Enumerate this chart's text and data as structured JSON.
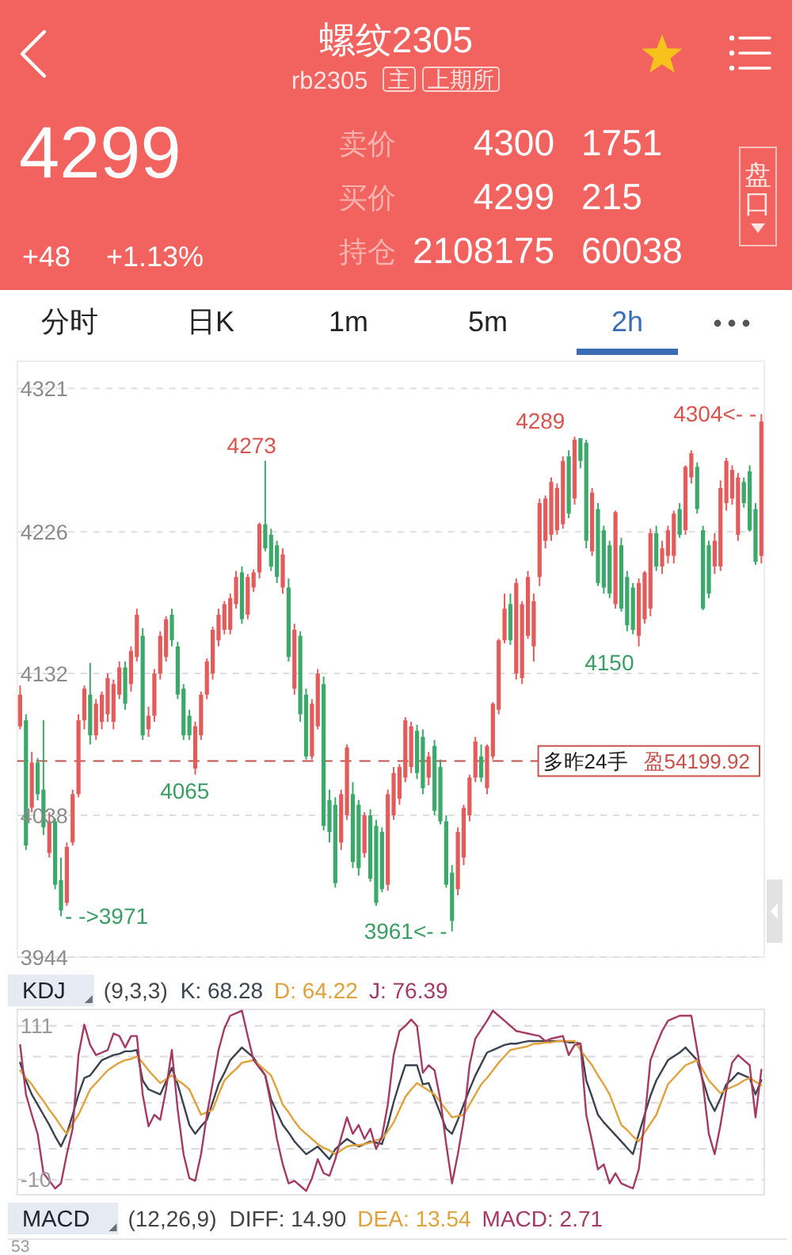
{
  "chart_data": [
    {
      "type": "other",
      "title": "螺纹2305",
      "subtitle": "rb2305",
      "annotations": [
        "主",
        "上期所",
        "4299",
        "+48",
        "+1.13%",
        "卖价",
        "4300",
        "1751",
        "买价",
        "4299",
        "215",
        "持仓",
        "2108175",
        "60038",
        "盘口",
        "分时",
        "日K",
        "1m",
        "5m",
        "2h"
      ]
    },
    {
      "type": "candlestick",
      "categories": [
        null,
        null,
        null,
        null,
        null,
        null,
        null,
        null,
        null,
        null,
        null,
        null,
        null,
        null,
        null,
        null,
        null,
        null,
        null,
        null,
        null,
        null,
        null,
        null,
        null,
        null,
        null,
        null,
        null,
        null,
        null,
        null,
        null,
        null,
        null,
        null,
        null,
        null,
        null,
        null,
        null,
        null,
        null,
        null,
        null,
        null,
        null,
        null,
        null,
        null,
        null,
        null,
        null,
        null,
        null,
        null,
        null,
        null,
        null,
        null,
        null,
        null,
        null,
        null,
        null,
        null,
        null,
        null,
        null,
        null,
        null,
        null,
        null,
        null,
        null,
        null,
        null,
        null,
        null,
        null,
        null,
        null,
        null,
        null,
        null,
        null,
        null,
        null,
        null,
        null,
        null,
        null,
        null,
        null,
        null,
        null,
        null,
        null,
        null,
        null,
        null,
        null,
        null,
        null,
        null,
        null,
        null,
        null,
        null,
        null,
        null,
        null,
        null,
        null,
        null,
        null,
        null,
        null,
        null,
        null,
        null,
        null,
        null,
        null,
        null,
        null,
        null,
        null
      ],
      "ohlc": [
        [
          4097,
          4124,
          4095,
          4118
        ],
        [
          4101,
          4105,
          4015,
          4018
        ],
        [
          4043,
          4080,
          4040,
          4073
        ],
        [
          4073,
          4076,
          4048,
          4052
        ],
        [
          4055,
          4101,
          4025,
          4030
        ],
        [
          4013,
          4040,
          4010,
          4034
        ],
        [
          4034,
          4036,
          3989,
          3992
        ],
        [
          3995,
          4010,
          3971,
          3975
        ],
        [
          3980,
          4020,
          3978,
          4017
        ],
        [
          4020,
          4055,
          4018,
          4052
        ],
        [
          4052,
          4105,
          4050,
          4101
        ],
        [
          4101,
          4124,
          4095,
          4122
        ],
        [
          4118,
          4139,
          4085,
          4091
        ],
        [
          4091,
          4115,
          4088,
          4112
        ],
        [
          4100,
          4120,
          4095,
          4118
        ],
        [
          4105,
          4132,
          4100,
          4129
        ],
        [
          4100,
          4128,
          4095,
          4125
        ],
        [
          4118,
          4140,
          4115,
          4136
        ],
        [
          4136,
          4140,
          4108,
          4112
        ],
        [
          4125,
          4150,
          4120,
          4147
        ],
        [
          4143,
          4175,
          4140,
          4171
        ],
        [
          4157,
          4162,
          4088,
          4091
        ],
        [
          4095,
          4110,
          4090,
          4104
        ],
        [
          4104,
          4135,
          4100,
          4132
        ],
        [
          4132,
          4160,
          4128,
          4157
        ],
        [
          4143,
          4170,
          4140,
          4168
        ],
        [
          4171,
          4175,
          4150,
          4154
        ],
        [
          4150,
          4153,
          4115,
          4118
        ],
        [
          4122,
          4125,
          4088,
          4091
        ],
        [
          4104,
          4108,
          4088,
          4091
        ],
        [
          4069,
          4100,
          4065,
          4097
        ],
        [
          4091,
          4120,
          4088,
          4118
        ],
        [
          4118,
          4142,
          4115,
          4140
        ],
        [
          4132,
          4163,
          4128,
          4161
        ],
        [
          4154,
          4175,
          4150,
          4171
        ],
        [
          4161,
          4180,
          4158,
          4178
        ],
        [
          4161,
          4185,
          4158,
          4182
        ],
        [
          4178,
          4200,
          4175,
          4196
        ],
        [
          4199,
          4203,
          4165,
          4168
        ],
        [
          4171,
          4198,
          4168,
          4196
        ],
        [
          4189,
          4201,
          4186,
          4199
        ],
        [
          4199,
          4232,
          4195,
          4231
        ],
        [
          4231,
          4273,
          4213,
          4215
        ],
        [
          4224,
          4228,
          4200,
          4203
        ],
        [
          4217,
          4220,
          4192,
          4196
        ],
        [
          4189,
          4215,
          4185,
          4211
        ],
        [
          4189,
          4195,
          4140,
          4143
        ],
        [
          4122,
          4165,
          4118,
          4161
        ],
        [
          4157,
          4160,
          4100,
          4105
        ],
        [
          4118,
          4122,
          4075,
          4077
        ],
        [
          4077,
          4115,
          4075,
          4112
        ],
        [
          4097,
          4135,
          4095,
          4132
        ],
        [
          4125,
          4130,
          4028,
          4031
        ],
        [
          4048,
          4055,
          4020,
          4027
        ],
        [
          4045,
          4050,
          3990,
          3993
        ],
        [
          4020,
          4055,
          4015,
          4052
        ],
        [
          4038,
          4085,
          4035,
          4083
        ],
        [
          4052,
          4060,
          4003,
          4007
        ],
        [
          4045,
          4048,
          3998,
          4003
        ],
        [
          4013,
          4040,
          4010,
          4038
        ],
        [
          4038,
          4042,
          3994,
          3996
        ],
        [
          4031,
          4035,
          3978,
          3980
        ],
        [
          4027,
          4030,
          3987,
          3989
        ],
        [
          3992,
          4055,
          3988,
          4052
        ],
        [
          4038,
          4070,
          4035,
          4066
        ],
        [
          4049,
          4072,
          4045,
          4070
        ],
        [
          4063,
          4103,
          4060,
          4101
        ],
        [
          4070,
          4100,
          4066,
          4097
        ],
        [
          4094,
          4098,
          4062,
          4066
        ],
        [
          4090,
          4095,
          4052,
          4056
        ],
        [
          4063,
          4080,
          4058,
          4077
        ],
        [
          4084,
          4088,
          4038,
          4041
        ],
        [
          4070,
          4075,
          4032,
          4034
        ],
        [
          4034,
          4038,
          3990,
          3992
        ],
        [
          4000,
          4005,
          3961,
          3968
        ],
        [
          3989,
          4030,
          3985,
          4027
        ],
        [
          4010,
          4045,
          4005,
          4043
        ],
        [
          4038,
          4065,
          4034,
          4063
        ],
        [
          4063,
          4090,
          4060,
          4087
        ],
        [
          4077,
          4085,
          4060,
          4063
        ],
        [
          4056,
          4085,
          4052,
          4084
        ],
        [
          4077,
          4113,
          4075,
          4112
        ],
        [
          4108,
          4155,
          4105,
          4154
        ],
        [
          4154,
          4185,
          4152,
          4175
        ],
        [
          4178,
          4185,
          4151,
          4154
        ],
        [
          4132,
          4195,
          4128,
          4192
        ],
        [
          4129,
          4180,
          4125,
          4178
        ],
        [
          4157,
          4200,
          4155,
          4196
        ],
        [
          4150,
          4185,
          4140,
          4180
        ],
        [
          4196,
          4248,
          4190,
          4245
        ],
        [
          4220,
          4250,
          4215,
          4248
        ],
        [
          4224,
          4262,
          4220,
          4259
        ],
        [
          4227,
          4258,
          4224,
          4255
        ],
        [
          4231,
          4276,
          4228,
          4273
        ],
        [
          4276,
          4280,
          4235,
          4238
        ],
        [
          4248,
          4289,
          4244,
          4287
        ],
        [
          4288,
          4288,
          4268,
          4273
        ],
        [
          4285,
          4287,
          4215,
          4220
        ],
        [
          4213,
          4255,
          4210,
          4252
        ],
        [
          4241,
          4245,
          4190,
          4192
        ],
        [
          4227,
          4230,
          4185,
          4189
        ],
        [
          4217,
          4220,
          4182,
          4185
        ],
        [
          4178,
          4240,
          4175,
          4239
        ],
        [
          4217,
          4222,
          4173,
          4175
        ],
        [
          4196,
          4200,
          4160,
          4164
        ],
        [
          4189,
          4192,
          4158,
          4161
        ],
        [
          4157,
          4195,
          4150,
          4192
        ],
        [
          4168,
          4200,
          4165,
          4199
        ],
        [
          4175,
          4228,
          4170,
          4225
        ],
        [
          4225,
          4230,
          4200,
          4203
        ],
        [
          4203,
          4220,
          4198,
          4215
        ],
        [
          4210,
          4230,
          4205,
          4227
        ],
        [
          4210,
          4240,
          4205,
          4238
        ],
        [
          4241,
          4245,
          4222,
          4224
        ],
        [
          4227,
          4270,
          4224,
          4269
        ],
        [
          4262,
          4280,
          4258,
          4278
        ],
        [
          4269,
          4272,
          4238,
          4241
        ],
        [
          4227,
          4230,
          4174,
          4175
        ],
        [
          4217,
          4220,
          4182,
          4185
        ],
        [
          4203,
          4225,
          4198,
          4220
        ],
        [
          4203,
          4260,
          4200,
          4255
        ],
        [
          4245,
          4275,
          4240,
          4273
        ],
        [
          4248,
          4270,
          4244,
          4267
        ],
        [
          4224,
          4265,
          4220,
          4262
        ],
        [
          4259,
          4262,
          4242,
          4245
        ],
        [
          4266,
          4270,
          4226,
          4227
        ],
        [
          4241,
          4245,
          4204,
          4206
        ],
        [
          4210,
          4304,
          4205,
          4299
        ]
      ],
      "colors": [
        "#e25c5c",
        "#3ca86a",
        "#e25c5c",
        "#3ca86a",
        "#3ca86a",
        "#e25c5c",
        "#3ca86a",
        "#3ca86a",
        "#e25c5c",
        "#e25c5c",
        "#e25c5c",
        "#e25c5c",
        "#3ca86a",
        "#e25c5c",
        "#e25c5c",
        "#e25c5c",
        "#e25c5c",
        "#e25c5c",
        "#3ca86a",
        "#e25c5c",
        "#e25c5c",
        "#3ca86a",
        "#e25c5c",
        "#e25c5c",
        "#e25c5c",
        "#e25c5c",
        "#3ca86a",
        "#3ca86a",
        "#3ca86a",
        "#3ca86a",
        "#e25c5c",
        "#e25c5c",
        "#e25c5c",
        "#e25c5c",
        "#e25c5c",
        "#e25c5c",
        "#e25c5c",
        "#e25c5c",
        "#3ca86a",
        "#e25c5c",
        "#e25c5c",
        "#e25c5c",
        "#3ca86a",
        "#3ca86a",
        "#3ca86a",
        "#e25c5c",
        "#3ca86a",
        "#e25c5c",
        "#3ca86a",
        "#3ca86a",
        "#e25c5c",
        "#e25c5c",
        "#3ca86a",
        "#3ca86a",
        "#3ca86a",
        "#e25c5c",
        "#e25c5c",
        "#3ca86a",
        "#3ca86a",
        "#e25c5c",
        "#3ca86a",
        "#3ca86a",
        "#3ca86a",
        "#e25c5c",
        "#e25c5c",
        "#e25c5c",
        "#e25c5c",
        "#e25c5c",
        "#3ca86a",
        "#3ca86a",
        "#e25c5c",
        "#3ca86a",
        "#3ca86a",
        "#3ca86a",
        "#3ca86a",
        "#e25c5c",
        "#e25c5c",
        "#e25c5c",
        "#e25c5c",
        "#3ca86a",
        "#e25c5c",
        "#e25c5c",
        "#e25c5c",
        "#e25c5c",
        "#3ca86a",
        "#e25c5c",
        "#e25c5c",
        "#e25c5c",
        "#e25c5c",
        "#e25c5c",
        "#e25c5c",
        "#e25c5c",
        "#e25c5c",
        "#e25c5c",
        "#3ca86a",
        "#e25c5c",
        "#3ca86a",
        "#3ca86a",
        "#e25c5c",
        "#3ca86a",
        "#3ca86a",
        "#3ca86a",
        "#e25c5c",
        "#3ca86a",
        "#3ca86a",
        "#3ca86a",
        "#e25c5c",
        "#e25c5c",
        "#e25c5c",
        "#3ca86a",
        "#e25c5c",
        "#e25c5c",
        "#e25c5c",
        "#3ca86a",
        "#e25c5c",
        "#e25c5c",
        "#3ca86a",
        "#3ca86a",
        "#3ca86a",
        "#e25c5c",
        "#e25c5c",
        "#e25c5c",
        "#e25c5c",
        "#e25c5c",
        "#3ca86a",
        "#3ca86a",
        "#3ca86a",
        "#e25c5c"
      ],
      "ylim": [
        3944,
        4339
      ],
      "yticks": [
        4321,
        4226,
        4132,
        4038,
        3944
      ],
      "grid": "y",
      "tick_labels": "y",
      "ref_lines": [
        {
          "axis": "y",
          "value": 4074,
          "label": "多昨24手",
          "color": "#c9504c",
          "line_style": "dashed"
        }
      ],
      "annotations": [
        "盈54199.92",
        "4273",
        "4289",
        "4304<- -",
        "- ->3971",
        "4065",
        "3961<- -",
        "4150"
      ]
    },
    {
      "type": "line",
      "title": "KDJ",
      "subtitle": "(9,3,3)",
      "categories": [
        null,
        null,
        null,
        null,
        null,
        null,
        null,
        null,
        null,
        null,
        null,
        null,
        null,
        null,
        null,
        null,
        null,
        null,
        null,
        null,
        null,
        null,
        null,
        null,
        null,
        null,
        null,
        null,
        null,
        null,
        null,
        null,
        null,
        null,
        null,
        null,
        null,
        null,
        null,
        null,
        null,
        null,
        null,
        null,
        null,
        null,
        null,
        null,
        null,
        null,
        null,
        null,
        null,
        null,
        null,
        null,
        null,
        null,
        null,
        null,
        null,
        null,
        null,
        null,
        null,
        null,
        null,
        null,
        null,
        null,
        null,
        null,
        null,
        null,
        null,
        null,
        null,
        null,
        null,
        null,
        null,
        null,
        null,
        null,
        null,
        null,
        null,
        null,
        null,
        null,
        null,
        null,
        null,
        null,
        null,
        null,
        null,
        null,
        null,
        null,
        null,
        null,
        null,
        null,
        null,
        null,
        null,
        null,
        null,
        null,
        null,
        null,
        null,
        null,
        null,
        null,
        null,
        null,
        null,
        null,
        null,
        null,
        null,
        null,
        null,
        null,
        null,
        null
      ],
      "ylim": [
        -22,
        124
      ],
      "yticks": [
        111,
        {
          "value": 86.8,
          "label": null
        },
        {
          "value": 50.5,
          "label": null
        },
        {
          "value": 14.2,
          "label": null
        },
        -10
      ],
      "grid": "y",
      "tick_labels": "y",
      "series": [
        {
          "name": "K: 68.28",
          "color": "#3b4250",
          "values": [
            82,
            68,
            57,
            49,
            41,
            33,
            24,
            16,
            26,
            41,
            57,
            70,
            72,
            78,
            84,
            86,
            88,
            89,
            91,
            91,
            92,
            68,
            61,
            59,
            57,
            67,
            78,
            65,
            49,
            33,
            26,
            32,
            37,
            51,
            65,
            74,
            84,
            89,
            94,
            90,
            86,
            79,
            72,
            53,
            43,
            33,
            27,
            20,
            15,
            10,
            13,
            16,
            11,
            6,
            14,
            18,
            22,
            19,
            16,
            18,
            20,
            19,
            18,
            33,
            51,
            66,
            80,
            80,
            80,
            65,
            66,
            54,
            42,
            30,
            26,
            37,
            49,
            61,
            72,
            81,
            90,
            92,
            94,
            96,
            97,
            97,
            98,
            99,
            99,
            99,
            99,
            99,
            99,
            99,
            98,
            98,
            97,
            68,
            55,
            41,
            35,
            30,
            25,
            20,
            15,
            10,
            26,
            41,
            56,
            68,
            76,
            84,
            87,
            90,
            94,
            89,
            84,
            68,
            53,
            44,
            54,
            65,
            69,
            74,
            72,
            70,
            57,
            68.28
          ]
        },
        {
          "name": "D: 64.22",
          "color": "#e0a23a",
          "values": [
            76,
            70,
            65,
            58,
            52,
            45,
            39,
            32,
            26,
            34,
            41,
            51,
            61,
            66,
            71,
            76,
            79,
            82,
            84,
            85,
            87,
            82,
            76,
            71,
            66,
            69,
            72,
            68,
            65,
            61,
            51,
            41,
            43,
            45,
            57,
            68,
            73,
            77,
            82,
            83,
            84,
            80,
            76,
            72,
            61,
            49,
            43,
            36,
            30,
            26,
            22,
            18,
            15,
            13,
            10,
            13,
            16,
            17,
            17,
            18,
            19,
            21,
            22,
            28,
            35,
            45,
            55,
            61,
            66,
            63,
            60,
            57,
            51,
            45,
            39,
            40,
            41,
            49,
            57,
            65,
            70,
            76,
            82,
            87,
            92,
            93,
            94,
            95,
            97,
            97,
            98,
            98,
            99,
            99,
            99,
            99,
            92,
            86,
            80,
            72,
            65,
            57,
            45,
            33,
            29,
            24,
            20,
            27,
            34,
            41,
            53,
            65,
            70,
            75,
            80,
            82,
            84,
            76,
            68,
            63,
            58,
            61,
            63,
            65,
            68,
            70,
            67,
            64.22
          ]
        },
        {
          "name": "J: 76.39",
          "color": "#a53a62",
          "values": [
            96,
            57,
            41,
            26,
            -5,
            -11,
            -17,
            -13,
            10,
            30,
            88,
            112,
            96,
            88,
            90,
            92,
            105,
            103,
            94,
            103,
            103,
            57,
            32,
            41,
            37,
            61,
            92,
            45,
            10,
            -9,
            -11,
            10,
            41,
            66,
            92,
            109,
            119,
            121,
            123,
            103,
            84,
            78,
            72,
            49,
            22,
            2,
            -13,
            -11,
            -15,
            -19,
            -9,
            6,
            -5,
            -7,
            6,
            23,
            39,
            26,
            33,
            22,
            30,
            14,
            24,
            49,
            88,
            107,
            111,
            116,
            111,
            74,
            80,
            76,
            53,
            18,
            -13,
            10,
            37,
            80,
            101,
            108,
            115,
            123,
            119,
            115,
            111,
            107,
            106,
            105,
            104,
            103,
            99,
            101,
            102,
            103,
            88,
            96,
            97,
            41,
            20,
            -2,
            2,
            -13,
            -5,
            -13,
            -15,
            -17,
            -2,
            37,
            84,
            96,
            107,
            115,
            117,
            119,
            119,
            119,
            92,
            65,
            26,
            10,
            33,
            61,
            82,
            88,
            84,
            80,
            39,
            76.39
          ]
        }
      ]
    },
    {
      "type": "other",
      "title": "MACD",
      "subtitle": "(12,26,9)",
      "annotations": [
        "DIFF: 14.90",
        "DEA: 13.54",
        "MACD: 2.71",
        "53"
      ]
    }
  ]
}
